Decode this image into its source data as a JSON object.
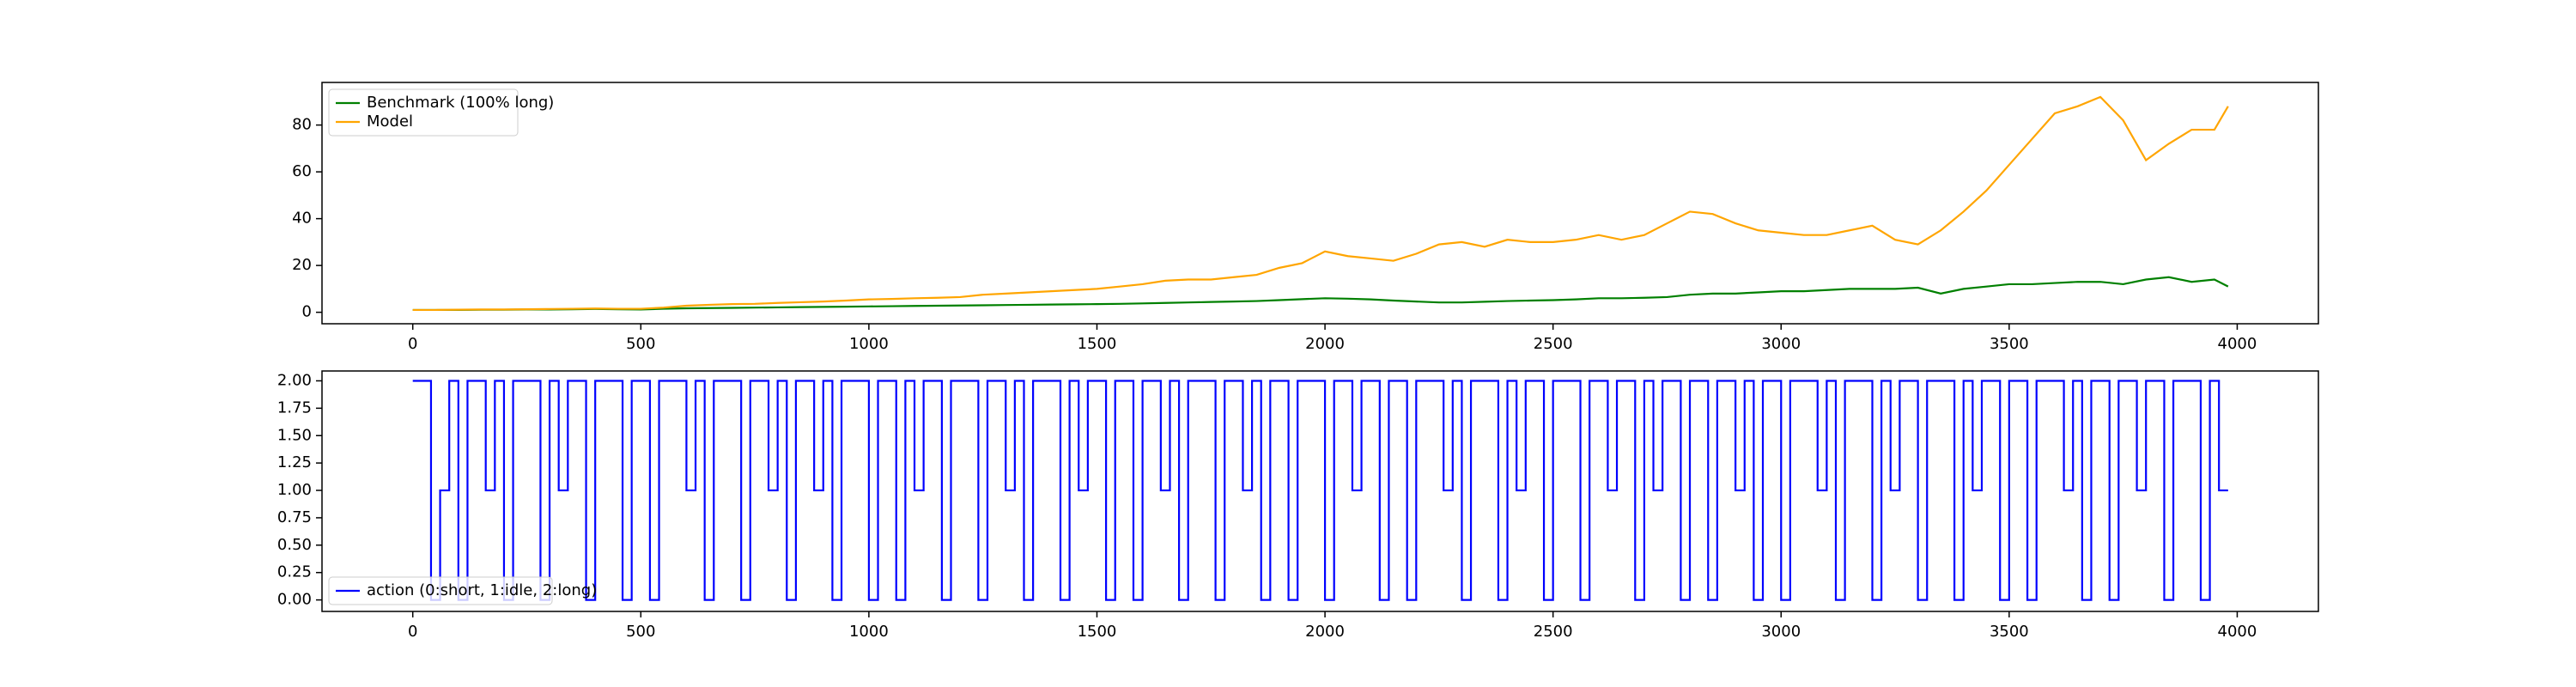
{
  "chart_data": [
    {
      "type": "line",
      "legend": "upper left",
      "x": [
        0,
        50,
        100,
        150,
        200,
        250,
        300,
        350,
        400,
        450,
        500,
        550,
        600,
        650,
        700,
        750,
        800,
        850,
        900,
        950,
        1000,
        1050,
        1100,
        1150,
        1200,
        1250,
        1300,
        1350,
        1400,
        1450,
        1500,
        1550,
        1600,
        1650,
        1700,
        1750,
        1800,
        1850,
        1900,
        1950,
        2000,
        2050,
        2100,
        2150,
        2200,
        2250,
        2300,
        2350,
        2400,
        2450,
        2500,
        2550,
        2600,
        2650,
        2700,
        2750,
        2800,
        2850,
        2900,
        2950,
        3000,
        3050,
        3100,
        3150,
        3200,
        3250,
        3300,
        3350,
        3400,
        3450,
        3500,
        3550,
        3600,
        3650,
        3700,
        3750,
        3800,
        3850,
        3900,
        3950,
        3980
      ],
      "series": [
        {
          "name": "Benchmark (100% long)",
          "color": "#008000",
          "values": [
            1,
            1,
            1,
            1.1,
            1.1,
            1.2,
            1.2,
            1.3,
            1.4,
            1.3,
            1.2,
            1.5,
            1.7,
            1.8,
            1.9,
            2,
            2.1,
            2.2,
            2.3,
            2.4,
            2.5,
            2.6,
            2.7,
            2.8,
            2.9,
            3,
            3.1,
            3.2,
            3.3,
            3.4,
            3.5,
            3.6,
            3.8,
            4,
            4.2,
            4.4,
            4.6,
            4.8,
            5.2,
            5.6,
            6,
            5.8,
            5.5,
            5,
            4.6,
            4.2,
            4.2,
            4.5,
            4.8,
            5,
            5.2,
            5.5,
            6,
            6,
            6.2,
            6.5,
            7.5,
            8,
            8,
            8.5,
            9,
            9,
            9.5,
            10,
            10,
            10,
            10.5,
            8,
            10,
            11,
            12,
            12,
            12.5,
            13,
            13,
            12,
            14,
            15,
            13,
            14,
            11
          ]
        },
        {
          "name": "Model",
          "color": "#ffa500",
          "values": [
            1,
            1,
            1.1,
            1.2,
            1.2,
            1.3,
            1.4,
            1.5,
            1.6,
            1.5,
            1.5,
            2,
            2.8,
            3.2,
            3.5,
            3.6,
            4,
            4.3,
            4.6,
            5,
            5.5,
            5.7,
            6,
            6.2,
            6.5,
            7.5,
            8,
            8.5,
            9,
            9.5,
            10,
            11,
            12,
            13.5,
            14,
            14,
            15,
            16,
            19,
            21,
            26,
            24,
            23,
            22,
            25,
            29,
            30,
            28,
            31,
            30,
            30,
            31,
            33,
            31,
            33,
            38,
            43,
            42,
            38,
            35,
            34,
            33,
            33,
            35,
            37,
            31,
            29,
            35,
            43,
            52,
            63,
            74,
            85,
            88,
            92,
            82,
            65,
            72,
            78,
            78,
            88
          ]
        }
      ],
      "xlim": [
        -199,
        4178
      ],
      "ylim": [
        -4.9,
        98.2
      ],
      "xticks": [
        0,
        500,
        1000,
        1500,
        2000,
        2500,
        3000,
        3500,
        4000
      ],
      "yticks": [
        0,
        20,
        40,
        60,
        80
      ]
    },
    {
      "type": "step",
      "legend": "lower left",
      "x": [
        0,
        20,
        40,
        60,
        80,
        100,
        120,
        140,
        160,
        180,
        200,
        220,
        240,
        260,
        280,
        300,
        320,
        340,
        360,
        380,
        400,
        420,
        440,
        460,
        480,
        500,
        520,
        540,
        560,
        580,
        600,
        620,
        640,
        660,
        680,
        700,
        720,
        740,
        760,
        780,
        800,
        820,
        840,
        860,
        880,
        900,
        920,
        940,
        960,
        980,
        1000,
        1020,
        1040,
        1060,
        1080,
        1100,
        1120,
        1140,
        1160,
        1180,
        1200,
        1220,
        1240,
        1260,
        1280,
        1300,
        1320,
        1340,
        1360,
        1380,
        1400,
        1420,
        1440,
        1460,
        1480,
        1500,
        1520,
        1540,
        1560,
        1580,
        1600,
        1620,
        1640,
        1660,
        1680,
        1700,
        1720,
        1740,
        1760,
        1780,
        1800,
        1820,
        1840,
        1860,
        1880,
        1900,
        1920,
        1940,
        1960,
        1980,
        2000,
        2020,
        2040,
        2060,
        2080,
        2100,
        2120,
        2140,
        2160,
        2180,
        2200,
        2220,
        2240,
        2260,
        2280,
        2300,
        2320,
        2340,
        2360,
        2380,
        2400,
        2420,
        2440,
        2460,
        2480,
        2500,
        2520,
        2540,
        2560,
        2580,
        2600,
        2620,
        2640,
        2660,
        2680,
        2700,
        2720,
        2740,
        2760,
        2780,
        2800,
        2820,
        2840,
        2860,
        2880,
        2900,
        2920,
        2940,
        2960,
        2980,
        3000,
        3020,
        3040,
        3060,
        3080,
        3100,
        3120,
        3140,
        3160,
        3180,
        3200,
        3220,
        3240,
        3260,
        3280,
        3300,
        3320,
        3340,
        3360,
        3380,
        3400,
        3420,
        3440,
        3460,
        3480,
        3500,
        3520,
        3540,
        3560,
        3580,
        3600,
        3620,
        3640,
        3660,
        3680,
        3700,
        3720,
        3740,
        3760,
        3780,
        3800,
        3820,
        3840,
        3860,
        3880,
        3900,
        3920,
        3940,
        3960,
        3980
      ],
      "series": [
        {
          "name": "action (0:short, 1:idle, 2:long)",
          "color": "#0000ff",
          "values": [
            2,
            2,
            0,
            1,
            2,
            0,
            2,
            2,
            1,
            2,
            0,
            2,
            2,
            2,
            0,
            2,
            1,
            2,
            2,
            0,
            2,
            2,
            2,
            0,
            2,
            2,
            0,
            2,
            2,
            2,
            1,
            2,
            0,
            2,
            2,
            2,
            0,
            2,
            2,
            1,
            2,
            0,
            2,
            2,
            1,
            2,
            0,
            2,
            2,
            2,
            0,
            2,
            2,
            0,
            2,
            1,
            2,
            2,
            0,
            2,
            2,
            2,
            0,
            2,
            2,
            1,
            2,
            0,
            2,
            2,
            2,
            0,
            2,
            1,
            2,
            2,
            0,
            2,
            2,
            0,
            2,
            2,
            1,
            2,
            0,
            2,
            2,
            2,
            0,
            2,
            2,
            1,
            2,
            0,
            2,
            2,
            0,
            2,
            2,
            2,
            0,
            2,
            2,
            1,
            2,
            2,
            0,
            2,
            2,
            0,
            2,
            2,
            2,
            1,
            2,
            0,
            2,
            2,
            2,
            0,
            2,
            1,
            2,
            2,
            0,
            2,
            2,
            2,
            0,
            2,
            2,
            1,
            2,
            2,
            0,
            2,
            1,
            2,
            2,
            0,
            2,
            2,
            0,
            2,
            2,
            1,
            2,
            0,
            2,
            2,
            0,
            2,
            2,
            2,
            1,
            2,
            0,
            2,
            2,
            2,
            0,
            2,
            1,
            2,
            2,
            0,
            2,
            2,
            2,
            0,
            2,
            1,
            2,
            2,
            0,
            2,
            2,
            0,
            2,
            2,
            2,
            1,
            2,
            0,
            2,
            2,
            0,
            2,
            2,
            1,
            2,
            2,
            0,
            2,
            2,
            2,
            0,
            2,
            1,
            1
          ]
        }
      ],
      "xlim": [
        -199,
        4178
      ],
      "ylim": [
        -0.105,
        2.09
      ],
      "xticks": [
        0,
        500,
        1000,
        1500,
        2000,
        2500,
        3000,
        3500,
        4000
      ],
      "yticks": [
        {
          "value": 0,
          "label": "0.00"
        },
        {
          "value": 0.25,
          "label": "0.25"
        },
        {
          "value": 0.5,
          "label": "0.50"
        },
        {
          "value": 0.75,
          "label": "0.75"
        },
        {
          "value": 1,
          "label": "1.00"
        },
        {
          "value": 1.25,
          "label": "1.25"
        },
        {
          "value": 1.5,
          "label": "1.50"
        },
        {
          "value": 1.75,
          "label": "1.75"
        },
        {
          "value": 2,
          "label": "2.00"
        }
      ]
    }
  ]
}
